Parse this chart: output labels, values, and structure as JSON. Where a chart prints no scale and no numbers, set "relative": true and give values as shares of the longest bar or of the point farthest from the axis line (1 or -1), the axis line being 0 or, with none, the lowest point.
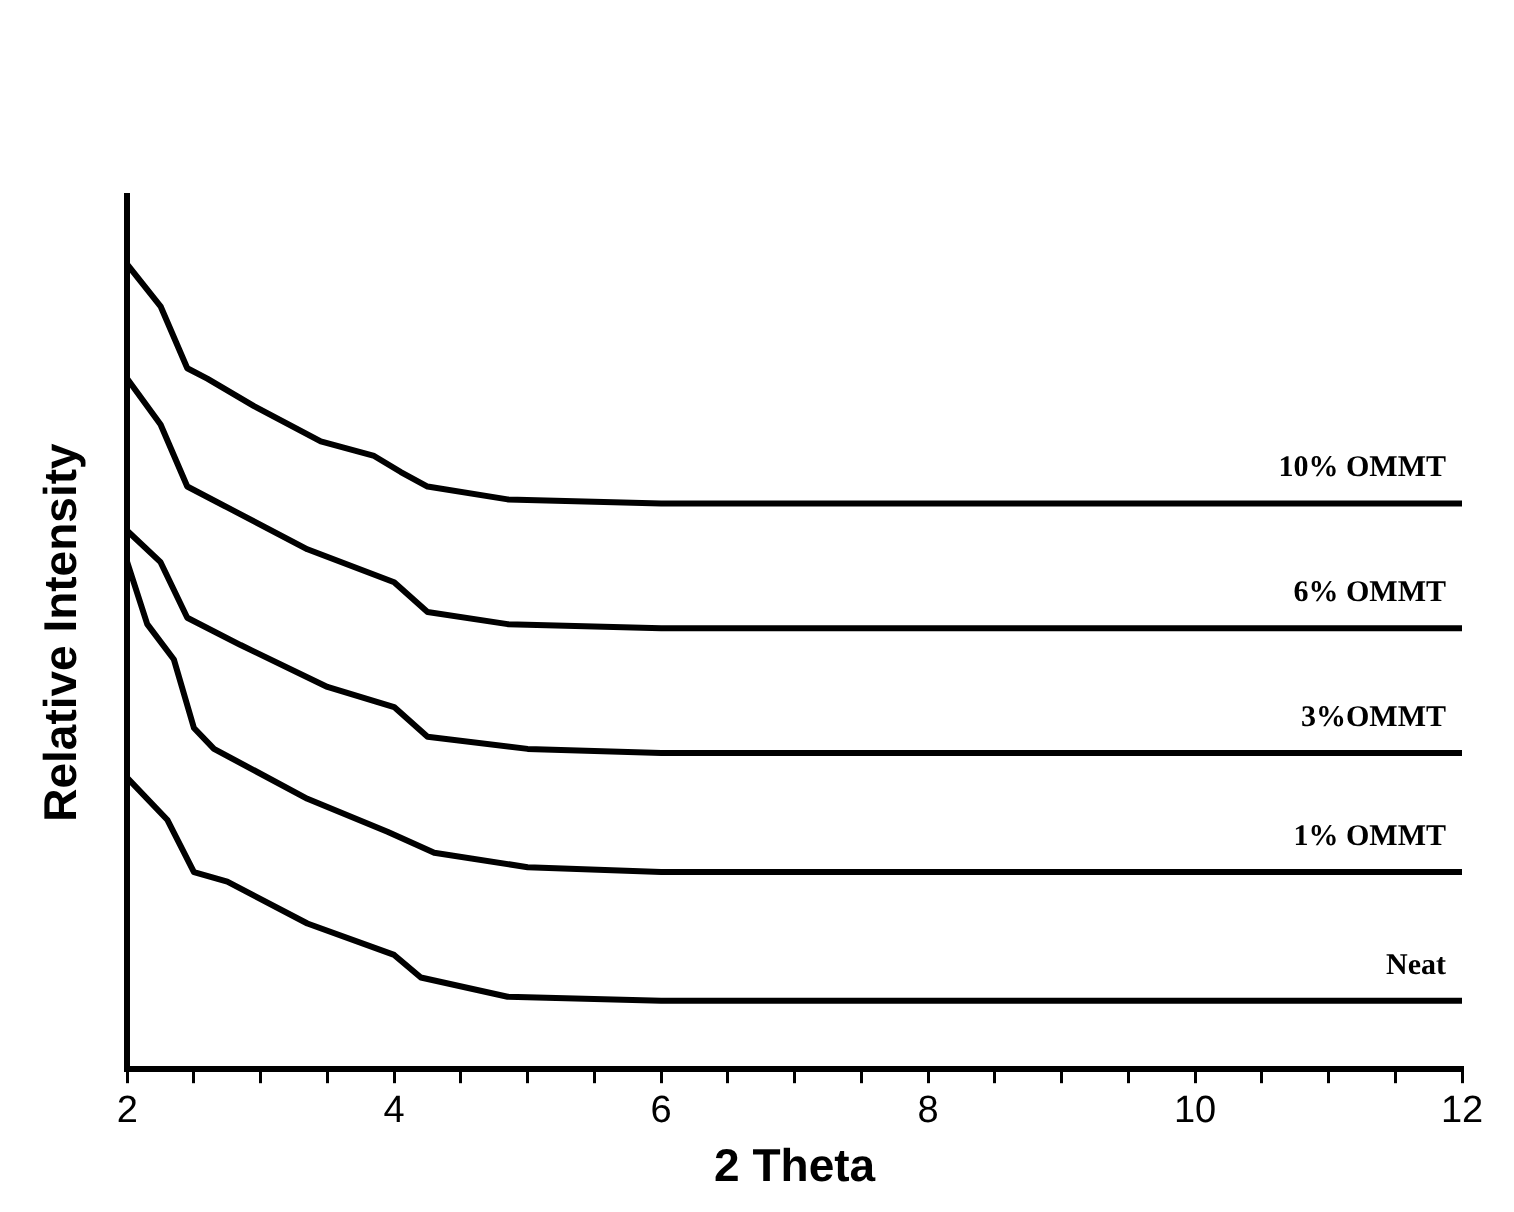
{
  "chart_data": {
    "type": "line",
    "relative": true,
    "xlabel": "2 Theta",
    "ylabel": "Relative Intensity",
    "xlim": [
      2,
      12
    ],
    "xticks": [
      2,
      {
        "value": 2.5,
        "label": null
      },
      {
        "value": 3,
        "label": null
      },
      {
        "value": 3.5,
        "label": null
      },
      4,
      {
        "value": 4.5,
        "label": null
      },
      {
        "value": 5,
        "label": null
      },
      {
        "value": 5.5,
        "label": null
      },
      6,
      {
        "value": 6.5,
        "label": null
      },
      {
        "value": 7,
        "label": null
      },
      {
        "value": 7.5,
        "label": null
      },
      8,
      {
        "value": 8.5,
        "label": null
      },
      {
        "value": 9,
        "label": null
      },
      {
        "value": 9.5,
        "label": null
      },
      10,
      {
        "value": 10.5,
        "label": null
      },
      {
        "value": 11,
        "label": null
      },
      {
        "value": 11.5,
        "label": null
      },
      12
    ],
    "grid": false,
    "legend": false,
    "marker": "none",
    "line_style": "solid",
    "series": [
      {
        "name": "Neat",
        "color": "#000000",
        "x": [
          2,
          2.3,
          2.5,
          2.75,
          3.35,
          4.0,
          4.2,
          4.85,
          6,
          12
        ],
        "values": [
          0.362,
          0.31,
          0.245,
          0.233,
          0.181,
          0.142,
          0.114,
          0.09,
          0.085,
          0.085
        ]
      },
      {
        "name": "1% OMMT",
        "color": "#000000",
        "x": [
          2,
          2.15,
          2.35,
          2.5,
          2.65,
          3.35,
          3.95,
          4.3,
          5.0,
          6,
          12
        ],
        "values": [
          0.63,
          0.553,
          0.509,
          0.424,
          0.398,
          0.336,
          0.295,
          0.269,
          0.251,
          0.245,
          0.245
        ]
      },
      {
        "name": "3%OMMT",
        "color": "#000000",
        "x": [
          2,
          2.25,
          2.45,
          2.85,
          3.5,
          4.0,
          4.25,
          5.0,
          6,
          12
        ],
        "values": [
          0.669,
          0.63,
          0.561,
          0.527,
          0.475,
          0.45,
          0.413,
          0.398,
          0.393,
          0.393
        ]
      },
      {
        "name": "6% OMMT",
        "color": "#000000",
        "x": [
          2,
          2.25,
          2.45,
          2.75,
          3.35,
          4.0,
          4.25,
          4.85,
          6,
          12
        ],
        "values": [
          0.858,
          0.801,
          0.724,
          0.698,
          0.646,
          0.605,
          0.568,
          0.553,
          0.548,
          0.548
        ]
      },
      {
        "name": "10% OMMT",
        "color": "#000000",
        "x": [
          2,
          2.25,
          2.45,
          2.6,
          2.95,
          3.45,
          3.85,
          4.05,
          4.25,
          4.85,
          6,
          12
        ],
        "values": [
          1,
          0.948,
          0.871,
          0.858,
          0.824,
          0.78,
          0.762,
          0.742,
          0.724,
          0.708,
          0.703,
          0.703
        ]
      }
    ]
  }
}
